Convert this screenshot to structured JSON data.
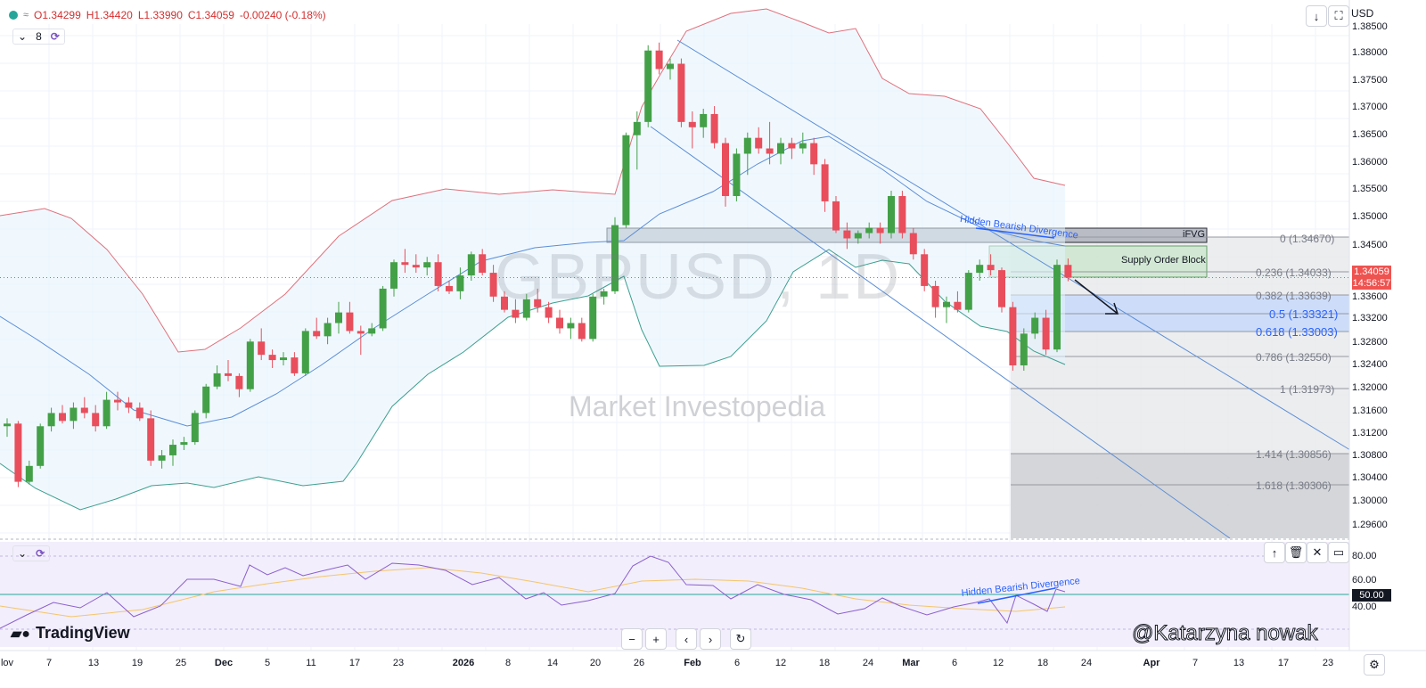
{
  "header": {
    "open": "O1.34299",
    "high": "H1.34420",
    "low": "L1.33990",
    "close": "C1.34059",
    "change": "-0.00240 (-0.18%)",
    "interval_count": "8"
  },
  "chart": {
    "symbol_watermark": "GBPUSD, 1D",
    "brand_watermark": "Market Investopedia",
    "currency": "USD",
    "annotations": {
      "divergence_top": "Hidden Bearish Divergence",
      "divergence_rsi": "Hidden Bearish Divergence",
      "ifvg": "iFVG",
      "supply": "Supply Order Block"
    },
    "current_price": "1.34059",
    "countdown": "14:56:57",
    "price_axis": [
      "1.38500",
      "1.38000",
      "1.37500",
      "1.37000",
      "1.36500",
      "1.36000",
      "1.35500",
      "1.35000",
      "1.34500",
      "1.33600",
      "1.33200",
      "1.32800",
      "1.32400",
      "1.32000",
      "1.31600",
      "1.31200",
      "1.30800",
      "1.30400",
      "1.30000",
      "1.29600"
    ],
    "fib_levels": [
      {
        "label": "0 (1.34670)"
      },
      {
        "label": "0.236 (1.34033)"
      },
      {
        "label": "0.382 (1.33639)"
      },
      {
        "label": "0.5 (1.33321)"
      },
      {
        "label": "0.618 (1.33003)"
      },
      {
        "label": "0.786 (1.32550)"
      },
      {
        "label": "1 (1.31973)"
      },
      {
        "label": "1.414 (1.30856)"
      },
      {
        "label": "1.618 (1.30306)"
      }
    ],
    "x_axis": [
      "lov",
      "7",
      "13",
      "19",
      "25",
      "Dec",
      "5",
      "11",
      "17",
      "23",
      "2026",
      "8",
      "14",
      "20",
      "26",
      "Feb",
      "6",
      "12",
      "18",
      "24",
      "Mar",
      "6",
      "12",
      "18",
      "24",
      "Apr",
      "7",
      "13",
      "17",
      "23"
    ]
  },
  "rsi": {
    "axis": [
      "80.00",
      "60.00",
      "50.00",
      "40.00"
    ],
    "current": "50.00"
  },
  "branding": {
    "tradingview": "TradingView",
    "credit": "@Katarzyna nowak"
  },
  "colors": {
    "bull": "#26a69a",
    "bull_candle": "#43a047",
    "bear": "#e84e5c",
    "band_upper": "#e0707c",
    "band_lower": "#3c9f8f",
    "channel": "#5b8dd6",
    "rsi_line": "#8a5fcf",
    "rsi_ma": "#f4c56b"
  },
  "chart_data": {
    "type": "candlestick",
    "symbol": "GBPUSD",
    "interval": "1D",
    "x_labels": [
      "lov",
      "7",
      "13",
      "19",
      "25",
      "Dec",
      "5",
      "11",
      "17",
      "23",
      "2026",
      "8",
      "14",
      "20",
      "26",
      "Feb",
      "6",
      "12",
      "18",
      "24",
      "Mar",
      "6",
      "12",
      "18",
      "24",
      "Apr",
      "7",
      "13",
      "17",
      "23"
    ],
    "last_ohlc": {
      "open": 1.34299,
      "high": 1.3442,
      "low": 1.3399,
      "close": 1.34059
    },
    "candles": [
      [
        1.3125,
        1.314,
        1.3105,
        1.313
      ],
      [
        1.313,
        1.3135,
        1.301,
        1.302
      ],
      [
        1.302,
        1.306,
        1.3015,
        1.305
      ],
      [
        1.305,
        1.313,
        1.3045,
        1.3125
      ],
      [
        1.3125,
        1.316,
        1.3115,
        1.315
      ],
      [
        1.315,
        1.3165,
        1.313,
        1.3135
      ],
      [
        1.3135,
        1.317,
        1.312,
        1.316
      ],
      [
        1.316,
        1.318,
        1.314,
        1.315
      ],
      [
        1.315,
        1.3165,
        1.3115,
        1.3125
      ],
      [
        1.3125,
        1.319,
        1.312,
        1.3175
      ],
      [
        1.3175,
        1.319,
        1.3155,
        1.317
      ],
      [
        1.317,
        1.318,
        1.315,
        1.316
      ],
      [
        1.316,
        1.317,
        1.3135,
        1.314
      ],
      [
        1.314,
        1.3155,
        1.305,
        1.306
      ],
      [
        1.306,
        1.308,
        1.3045,
        1.307
      ],
      [
        1.307,
        1.31,
        1.305,
        1.309
      ],
      [
        1.309,
        1.3105,
        1.308,
        1.3095
      ],
      [
        1.3095,
        1.3155,
        1.309,
        1.315
      ],
      [
        1.315,
        1.3205,
        1.314,
        1.32
      ],
      [
        1.32,
        1.324,
        1.3195,
        1.3225
      ],
      [
        1.3225,
        1.325,
        1.321,
        1.322
      ],
      [
        1.322,
        1.3225,
        1.318,
        1.3195
      ],
      [
        1.3195,
        1.329,
        1.319,
        1.3285
      ],
      [
        1.3285,
        1.331,
        1.325,
        1.326
      ],
      [
        1.326,
        1.327,
        1.3235,
        1.325
      ],
      [
        1.325,
        1.3265,
        1.324,
        1.3255
      ],
      [
        1.3255,
        1.3265,
        1.322,
        1.3225
      ],
      [
        1.3225,
        1.331,
        1.322,
        1.3305
      ],
      [
        1.3305,
        1.333,
        1.329,
        1.3295
      ],
      [
        1.3295,
        1.333,
        1.328,
        1.332
      ],
      [
        1.332,
        1.336,
        1.33,
        1.334
      ],
      [
        1.334,
        1.336,
        1.33,
        1.3305
      ],
      [
        1.3305,
        1.3315,
        1.326,
        1.33
      ],
      [
        1.33,
        1.332,
        1.3295,
        1.331
      ],
      [
        1.331,
        1.339,
        1.3305,
        1.3385
      ],
      [
        1.3385,
        1.344,
        1.337,
        1.3435
      ],
      [
        1.3435,
        1.346,
        1.3415,
        1.343
      ],
      [
        1.343,
        1.345,
        1.3415,
        1.3425
      ],
      [
        1.3425,
        1.3445,
        1.341,
        1.3435
      ],
      [
        1.3435,
        1.345,
        1.338,
        1.339
      ],
      [
        1.339,
        1.34,
        1.3375,
        1.338
      ],
      [
        1.338,
        1.3425,
        1.3365,
        1.341
      ],
      [
        1.341,
        1.3455,
        1.34,
        1.345
      ],
      [
        1.345,
        1.346,
        1.341,
        1.3415
      ],
      [
        1.3415,
        1.343,
        1.336,
        1.337
      ],
      [
        1.337,
        1.338,
        1.334,
        1.3345
      ],
      [
        1.3345,
        1.3365,
        1.332,
        1.333
      ],
      [
        1.333,
        1.3375,
        1.3325,
        1.3365
      ],
      [
        1.3365,
        1.3385,
        1.334,
        1.335
      ],
      [
        1.335,
        1.336,
        1.332,
        1.333
      ],
      [
        1.333,
        1.3345,
        1.33,
        1.331
      ],
      [
        1.331,
        1.333,
        1.329,
        1.332
      ],
      [
        1.332,
        1.333,
        1.3285,
        1.329
      ],
      [
        1.329,
        1.3375,
        1.3285,
        1.337
      ],
      [
        1.337,
        1.3385,
        1.3355,
        1.338
      ],
      [
        1.338,
        1.352,
        1.3375,
        1.3505
      ],
      [
        1.3505,
        1.368,
        1.35,
        1.3675
      ],
      [
        1.3675,
        1.372,
        1.361,
        1.37
      ],
      [
        1.37,
        1.3845,
        1.369,
        1.3835
      ],
      [
        1.3835,
        1.385,
        1.379,
        1.38
      ],
      [
        1.38,
        1.382,
        1.378,
        1.381
      ],
      [
        1.381,
        1.382,
        1.369,
        1.37
      ],
      [
        1.37,
        1.372,
        1.365,
        1.369
      ],
      [
        1.369,
        1.3725,
        1.367,
        1.3715
      ],
      [
        1.3715,
        1.373,
        1.365,
        1.366
      ],
      [
        1.366,
        1.367,
        1.354,
        1.356
      ],
      [
        1.356,
        1.365,
        1.355,
        1.364
      ],
      [
        1.364,
        1.368,
        1.36,
        1.367
      ],
      [
        1.367,
        1.369,
        1.364,
        1.365
      ],
      [
        1.365,
        1.37,
        1.362,
        1.364
      ],
      [
        1.364,
        1.367,
        1.362,
        1.366
      ],
      [
        1.366,
        1.367,
        1.363,
        1.365
      ],
      [
        1.365,
        1.368,
        1.364,
        1.366
      ],
      [
        1.366,
        1.367,
        1.36,
        1.362
      ],
      [
        1.362,
        1.363,
        1.353,
        1.355
      ],
      [
        1.355,
        1.356,
        1.349,
        1.3495
      ],
      [
        1.3495,
        1.351,
        1.346,
        1.348
      ],
      [
        1.348,
        1.3495,
        1.347,
        1.349
      ],
      [
        1.349,
        1.351,
        1.348,
        1.35
      ],
      [
        1.35,
        1.351,
        1.347,
        1.349
      ],
      [
        1.349,
        1.357,
        1.348,
        1.356
      ],
      [
        1.356,
        1.357,
        1.348,
        1.349
      ],
      [
        1.349,
        1.35,
        1.344,
        1.345
      ],
      [
        1.345,
        1.346,
        1.338,
        1.339
      ],
      [
        1.339,
        1.34,
        1.333,
        1.335
      ],
      [
        1.335,
        1.337,
        1.332,
        1.336
      ],
      [
        1.336,
        1.338,
        1.334,
        1.3345
      ],
      [
        1.3345,
        1.342,
        1.334,
        1.3415
      ],
      [
        1.3415,
        1.344,
        1.34,
        1.343
      ],
      [
        1.343,
        1.345,
        1.341,
        1.342
      ],
      [
        1.342,
        1.3425,
        1.334,
        1.335
      ],
      [
        1.335,
        1.336,
        1.323,
        1.324
      ],
      [
        1.324,
        1.331,
        1.323,
        1.33
      ],
      [
        1.33,
        1.334,
        1.329,
        1.333
      ],
      [
        1.333,
        1.3345,
        1.326,
        1.327
      ],
      [
        1.327,
        1.344,
        1.3265,
        1.343
      ],
      [
        1.34299,
        1.3442,
        1.3399,
        1.34059
      ]
    ]
  }
}
